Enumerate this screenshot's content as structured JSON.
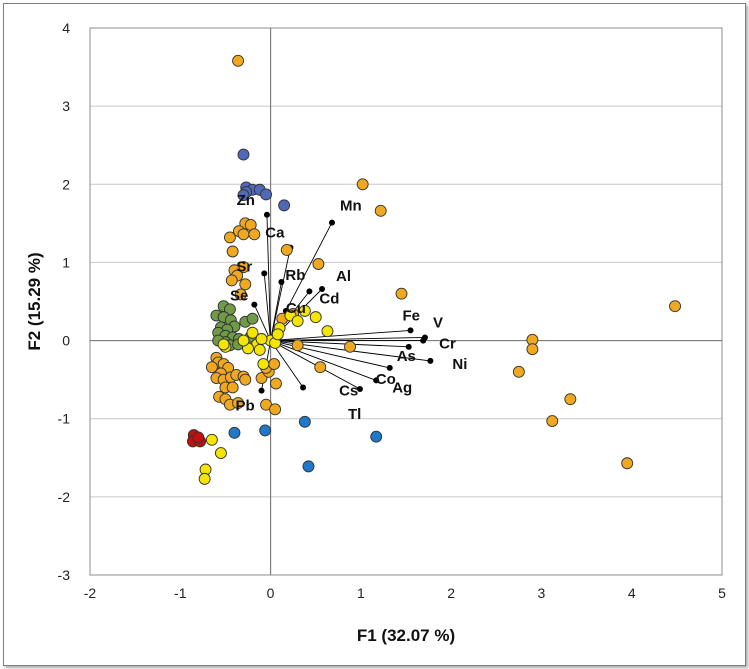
{
  "chart_data": {
    "type": "scatter",
    "title": "",
    "xlabel": "F1 (32.07 %)",
    "ylabel": "F2 (15.29 %)",
    "xlim": [
      -2,
      5
    ],
    "ylim": [
      -3,
      4
    ],
    "xticks": [
      "-2",
      "-1",
      "0",
      "1",
      "2",
      "3",
      "4",
      "5"
    ],
    "yticks": [
      "-3",
      "-2",
      "-1",
      "0",
      "1",
      "2",
      "3",
      "4"
    ],
    "grid": true,
    "legend": "none",
    "colors": {
      "orange": "#f0a820",
      "dark_blue": "#5068b8",
      "light_blue": "#1f78c8",
      "green": "#6f9a48",
      "yellow": "#f4e600",
      "red": "#c01010",
      "vector": "#000000",
      "axis_zero": "#7f7f7f",
      "gridline": "#c8c8c8"
    },
    "loadings": [
      {
        "name": "Zn",
        "x": -0.04,
        "y": 1.61
      },
      {
        "name": "Mn",
        "x": 0.68,
        "y": 1.51
      },
      {
        "name": "Ca",
        "x": 0.22,
        "y": 1.19
      },
      {
        "name": "Sr",
        "x": -0.07,
        "y": 0.86
      },
      {
        "name": "Rb",
        "x": 0.12,
        "y": 0.75
      },
      {
        "name": "Al",
        "x": 0.57,
        "y": 0.66
      },
      {
        "name": "Cd",
        "x": 0.43,
        "y": 0.63
      },
      {
        "name": "Se",
        "x": -0.18,
        "y": 0.46
      },
      {
        "name": "Cu",
        "x": 0.17,
        "y": 0.38
      },
      {
        "name": "Fe",
        "x": 1.55,
        "y": 0.13
      },
      {
        "name": "V",
        "x": 1.71,
        "y": 0.04
      },
      {
        "name": "Cr",
        "x": 1.69,
        "y": 0.0
      },
      {
        "name": "As",
        "x": 1.53,
        "y": -0.08
      },
      {
        "name": "Ni",
        "x": 1.77,
        "y": -0.26
      },
      {
        "name": "Co",
        "x": 1.32,
        "y": -0.35
      },
      {
        "name": "Ag",
        "x": 1.17,
        "y": -0.51
      },
      {
        "name": "Tl",
        "x": 0.99,
        "y": -0.62
      },
      {
        "name": "Cs",
        "x": 0.36,
        "y": -0.6
      },
      {
        "name": "Pb",
        "x": -0.1,
        "y": -0.64
      }
    ],
    "series": [
      {
        "color_key": "orange",
        "points": [
          [
            -0.36,
            3.58
          ],
          [
            1.02,
            2.0
          ],
          [
            1.22,
            1.66
          ],
          [
            0.53,
            0.98
          ],
          [
            1.45,
            0.6
          ],
          [
            4.48,
            0.44
          ],
          [
            2.9,
            0.01
          ],
          [
            2.9,
            -0.11
          ],
          [
            2.75,
            -0.4
          ],
          [
            3.32,
            -0.75
          ],
          [
            3.12,
            -1.03
          ],
          [
            3.95,
            -1.57
          ],
          [
            0.88,
            -0.08
          ],
          [
            0.55,
            -0.34
          ],
          [
            0.3,
            -0.06
          ],
          [
            0.18,
            1.16
          ],
          [
            -0.28,
            1.5
          ],
          [
            -0.22,
            1.48
          ],
          [
            -0.35,
            1.4
          ],
          [
            -0.3,
            1.36
          ],
          [
            -0.45,
            1.32
          ],
          [
            -0.18,
            1.36
          ],
          [
            -0.42,
            1.14
          ],
          [
            -0.3,
            0.94
          ],
          [
            -0.4,
            0.9
          ],
          [
            -0.37,
            0.83
          ],
          [
            -0.43,
            0.77
          ],
          [
            -0.28,
            0.72
          ],
          [
            -0.33,
            0.59
          ],
          [
            -0.6,
            -0.22
          ],
          [
            -0.58,
            -0.28
          ],
          [
            -0.52,
            -0.3
          ],
          [
            -0.65,
            -0.34
          ],
          [
            -0.47,
            -0.35
          ],
          [
            -0.55,
            -0.42
          ],
          [
            -0.6,
            -0.48
          ],
          [
            -0.52,
            -0.5
          ],
          [
            -0.44,
            -0.47
          ],
          [
            -0.38,
            -0.44
          ],
          [
            -0.3,
            -0.46
          ],
          [
            -0.28,
            -0.5
          ],
          [
            -0.5,
            -0.6
          ],
          [
            -0.42,
            -0.6
          ],
          [
            -0.57,
            -0.72
          ],
          [
            -0.5,
            -0.75
          ],
          [
            -0.45,
            -0.82
          ],
          [
            -0.36,
            -0.8
          ],
          [
            -0.1,
            -0.48
          ],
          [
            0.06,
            -0.55
          ],
          [
            -0.05,
            -0.82
          ],
          [
            0.05,
            -0.88
          ],
          [
            -0.02,
            -0.4
          ],
          [
            -0.05,
            -0.35
          ],
          [
            0.04,
            -0.3
          ],
          [
            0.13,
            0.28
          ],
          [
            0.25,
            0.34
          ]
        ]
      },
      {
        "color_key": "dark_blue",
        "points": [
          [
            -0.3,
            2.38
          ],
          [
            -0.27,
            1.96
          ],
          [
            -0.2,
            1.93
          ],
          [
            -0.27,
            1.9
          ],
          [
            -0.3,
            1.86
          ],
          [
            -0.12,
            1.93
          ],
          [
            -0.05,
            1.87
          ],
          [
            0.15,
            1.73
          ]
        ]
      },
      {
        "color_key": "light_blue",
        "points": [
          [
            -0.4,
            -1.18
          ],
          [
            -0.06,
            -1.15
          ],
          [
            0.38,
            -1.04
          ],
          [
            1.17,
            -1.23
          ],
          [
            0.42,
            -1.61
          ]
        ]
      },
      {
        "color_key": "green",
        "points": [
          [
            -0.52,
            0.44
          ],
          [
            -0.45,
            0.4
          ],
          [
            -0.6,
            0.32
          ],
          [
            -0.52,
            0.3
          ],
          [
            -0.44,
            0.26
          ],
          [
            -0.4,
            0.18
          ],
          [
            -0.55,
            0.17
          ],
          [
            -0.48,
            0.14
          ],
          [
            -0.58,
            0.1
          ],
          [
            -0.5,
            0.06
          ],
          [
            -0.42,
            0.04
          ],
          [
            -0.35,
            0.02
          ],
          [
            -0.5,
            -0.02
          ],
          [
            -0.58,
            0.0
          ],
          [
            -0.45,
            -0.06
          ],
          [
            -0.36,
            -0.05
          ],
          [
            -0.28,
            0.24
          ],
          [
            -0.2,
            0.28
          ],
          [
            -0.22,
            0.05
          ]
        ]
      },
      {
        "color_key": "yellow",
        "points": [
          [
            0.63,
            0.12
          ],
          [
            0.5,
            0.3
          ],
          [
            0.38,
            0.38
          ],
          [
            0.22,
            0.32
          ],
          [
            0.3,
            0.25
          ],
          [
            0.1,
            0.16
          ],
          [
            0.0,
            0.0
          ],
          [
            0.05,
            -0.03
          ],
          [
            0.08,
            0.08
          ],
          [
            -0.15,
            -0.05
          ],
          [
            -0.12,
            -0.12
          ],
          [
            -0.5,
            -0.08
          ],
          [
            -0.52,
            -0.05
          ],
          [
            -0.08,
            -0.3
          ],
          [
            -0.25,
            -0.1
          ],
          [
            -0.3,
            0.0
          ],
          [
            -0.2,
            0.1
          ],
          [
            -0.65,
            -1.27
          ],
          [
            -0.55,
            -1.44
          ],
          [
            -0.72,
            -1.65
          ],
          [
            -0.73,
            -1.77
          ],
          [
            -0.1,
            0.02
          ]
        ]
      },
      {
        "color_key": "red",
        "points": [
          [
            -0.85,
            -1.21
          ],
          [
            -0.82,
            -1.27
          ],
          [
            -0.86,
            -1.29
          ],
          [
            -0.78,
            -1.29
          ],
          [
            -0.8,
            -1.24
          ]
        ]
      }
    ]
  }
}
